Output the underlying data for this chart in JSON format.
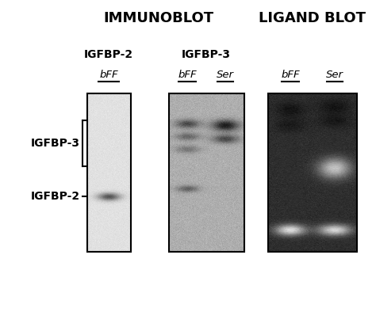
{
  "title_immunoblot": "IMMUNOBLOT",
  "title_ligand_blot": "LIGAND BLOT",
  "label_igfbp2": "IGFBP-2",
  "label_igfbp3": "IGFBP-3",
  "lane_label_bff": "bFF",
  "lane_label_ser": "Ser",
  "left_label_igfbp3": "IGFBP-3",
  "left_label_igfbp2": "IGFBP-2",
  "bg_color": "#ffffff",
  "panel_border_color": "#000000",
  "text_color": "#000000",
  "title_fontsize": 13,
  "label_fontsize": 10,
  "lane_label_fontsize": 9.5
}
